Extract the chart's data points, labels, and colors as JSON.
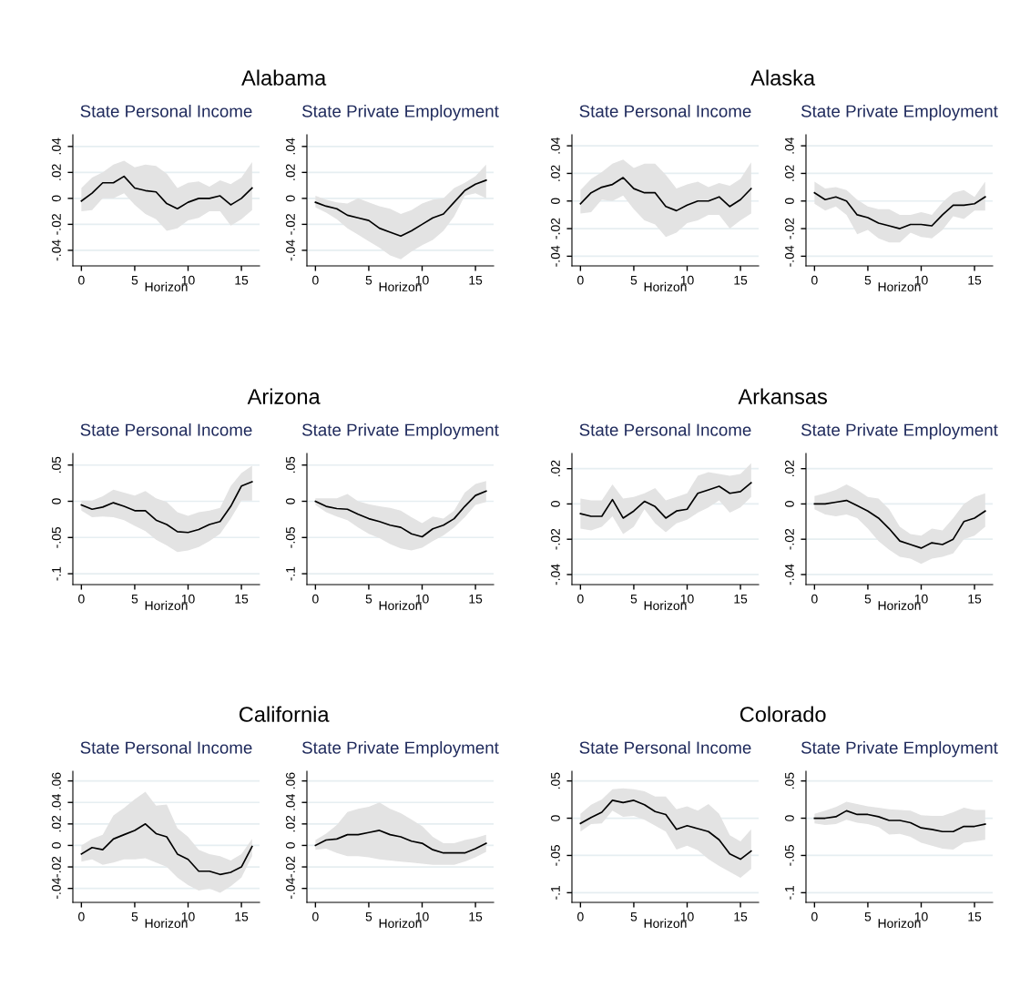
{
  "chart_data": [
    {
      "type": "line",
      "title": "State Personal Income",
      "annotations": [
        "Alabama"
      ],
      "xlabel": "Horizon",
      "x": [
        0,
        1,
        2,
        3,
        4,
        5,
        6,
        7,
        8,
        9,
        10,
        11,
        12,
        13,
        14,
        15,
        16
      ],
      "xlim": [
        -0.8,
        16.7
      ],
      "xticks": [
        0,
        5,
        10,
        15
      ],
      "ylim": [
        -0.052,
        0.049
      ],
      "yticks": [
        {
          "value": -0.04,
          "label": "-.04"
        },
        {
          "value": -0.02,
          "label": "-.02"
        },
        0,
        {
          "value": 0.02,
          "label": ".02"
        },
        {
          "value": 0.04,
          "label": ".04"
        }
      ],
      "grid": "y",
      "series": [
        {
          "color": "#000000",
          "values": [
            -0.002,
            0.004,
            0.012,
            0.012,
            0.017,
            0.008,
            0.006,
            0.005,
            -0.004,
            -0.008,
            -0.003,
            0,
            0,
            0.002,
            -0.005,
            0,
            0.008
          ],
          "upper": [
            0.008,
            0.016,
            0.02,
            0.026,
            0.029,
            0.024,
            0.026,
            0.025,
            0.019,
            0.008,
            0.012,
            0.013,
            0.009,
            0.014,
            0.011,
            0.016,
            0.028
          ],
          "lower": [
            -0.01,
            -0.009,
            0,
            0,
            0.004,
            -0.005,
            -0.012,
            -0.016,
            -0.025,
            -0.023,
            -0.017,
            -0.015,
            -0.01,
            -0.01,
            -0.021,
            -0.016,
            -0.009
          ]
        }
      ]
    },
    {
      "type": "line",
      "title": "State Private Employment",
      "xlabel": "Horizon",
      "x": [
        0,
        1,
        2,
        3,
        4,
        5,
        6,
        7,
        8,
        9,
        10,
        11,
        12,
        13,
        14,
        15,
        16
      ],
      "xlim": [
        -0.8,
        16.7
      ],
      "xticks": [
        0,
        5,
        10,
        15
      ],
      "ylim": [
        -0.052,
        0.049
      ],
      "yticks": [
        {
          "value": -0.04,
          "label": "-.04"
        },
        {
          "value": -0.02,
          "label": "-.02"
        },
        0,
        {
          "value": 0.02,
          "label": ".02"
        },
        {
          "value": 0.04,
          "label": ".04"
        }
      ],
      "grid": "y",
      "series": [
        {
          "color": "#000000",
          "values": [
            -0.003,
            -0.006,
            -0.008,
            -0.013,
            -0.015,
            -0.017,
            -0.023,
            -0.026,
            -0.029,
            -0.025,
            -0.02,
            -0.015,
            -0.012,
            -0.003,
            0.006,
            0.011,
            0.014
          ],
          "upper": [
            0.002,
            -0.001,
            -0.003,
            -0.004,
            0,
            -0.003,
            -0.006,
            -0.008,
            -0.012,
            -0.009,
            -0.004,
            -0.001,
            0,
            0.008,
            0.012,
            0.017,
            0.026
          ],
          "lower": [
            -0.007,
            -0.011,
            -0.016,
            -0.023,
            -0.028,
            -0.033,
            -0.038,
            -0.044,
            -0.047,
            -0.041,
            -0.036,
            -0.032,
            -0.025,
            -0.014,
            0.002,
            0.004,
            0
          ]
        }
      ]
    },
    {
      "type": "line",
      "title": "State Personal Income",
      "annotations": [
        "Alaska"
      ],
      "xlabel": "Horizon",
      "x": [
        0,
        1,
        2,
        3,
        4,
        5,
        6,
        7,
        8,
        9,
        10,
        11,
        12,
        13,
        14,
        15,
        16
      ],
      "xlim": [
        -0.8,
        16.7
      ],
      "xticks": [
        0,
        5,
        10,
        15
      ],
      "ylim": [
        -0.047,
        0.048
      ],
      "yticks": [
        {
          "value": -0.04,
          "label": "-.04"
        },
        {
          "value": -0.02,
          "label": "-.02"
        },
        0,
        {
          "value": 0.02,
          "label": ".02"
        },
        {
          "value": 0.04,
          "label": ".04"
        }
      ],
      "grid": "y",
      "series": [
        {
          "color": "#000000",
          "values": [
            -0.002,
            0.006,
            0.01,
            0.012,
            0.017,
            0.009,
            0.006,
            0.006,
            -0.004,
            -0.007,
            -0.003,
            0,
            0,
            0.003,
            -0.004,
            0.001,
            0.009
          ],
          "upper": [
            0.008,
            0.016,
            0.021,
            0.027,
            0.03,
            0.024,
            0.027,
            0.027,
            0.019,
            0.009,
            0.012,
            0.014,
            0.01,
            0.013,
            0.011,
            0.016,
            0.028
          ],
          "lower": [
            -0.009,
            -0.008,
            0.001,
            0,
            0.004,
            -0.006,
            -0.014,
            -0.017,
            -0.026,
            -0.023,
            -0.016,
            -0.014,
            -0.01,
            -0.01,
            -0.02,
            -0.014,
            -0.009
          ]
        }
      ]
    },
    {
      "type": "line",
      "title": "State Private Employment",
      "xlabel": "Horizon",
      "x": [
        0,
        1,
        2,
        3,
        4,
        5,
        6,
        7,
        8,
        9,
        10,
        11,
        12,
        13,
        14,
        15,
        16
      ],
      "xlim": [
        -0.8,
        16.7
      ],
      "xticks": [
        0,
        5,
        10,
        15
      ],
      "ylim": [
        -0.047,
        0.048
      ],
      "yticks": [
        {
          "value": -0.04,
          "label": "-.04"
        },
        {
          "value": -0.02,
          "label": "-.02"
        },
        0,
        {
          "value": 0.02,
          "label": ".02"
        },
        {
          "value": 0.04,
          "label": ".04"
        }
      ],
      "grid": "y",
      "series": [
        {
          "color": "#000000",
          "values": [
            0.006,
            0.001,
            0.003,
            0,
            -0.01,
            -0.012,
            -0.016,
            -0.018,
            -0.02,
            -0.017,
            -0.017,
            -0.018,
            -0.01,
            -0.003,
            -0.003,
            -0.002,
            0.003
          ],
          "upper": [
            0.014,
            0.009,
            0.01,
            0.008,
            0.001,
            -0.004,
            -0.006,
            -0.006,
            -0.01,
            -0.01,
            -0.008,
            -0.01,
            -0.001,
            0.006,
            0.008,
            0.003,
            0.014
          ],
          "lower": [
            -0.002,
            -0.007,
            -0.004,
            -0.01,
            -0.024,
            -0.021,
            -0.027,
            -0.03,
            -0.03,
            -0.023,
            -0.026,
            -0.027,
            -0.021,
            -0.011,
            -0.013,
            -0.007,
            -0.007
          ]
        }
      ]
    },
    {
      "type": "line",
      "title": "State Personal Income",
      "annotations": [
        "Arizona"
      ],
      "xlabel": "Horizon",
      "x": [
        0,
        1,
        2,
        3,
        4,
        5,
        6,
        7,
        8,
        9,
        10,
        11,
        12,
        13,
        14,
        15,
        16
      ],
      "xlim": [
        -0.8,
        16.7
      ],
      "xticks": [
        0,
        5,
        10,
        15
      ],
      "ylim": [
        -0.115,
        0.066
      ],
      "yticks": [
        {
          "value": -0.1,
          "label": "-.1"
        },
        {
          "value": -0.05,
          "label": "-.05"
        },
        0,
        {
          "value": 0.05,
          "label": ".05"
        }
      ],
      "grid": "y",
      "series": [
        {
          "color": "#000000",
          "values": [
            -0.005,
            -0.011,
            -0.008,
            -0.002,
            -0.007,
            -0.013,
            -0.013,
            -0.026,
            -0.032,
            -0.042,
            -0.043,
            -0.039,
            -0.032,
            -0.028,
            -0.007,
            0.021,
            0.027
          ],
          "upper": [
            0.001,
            0.001,
            0.007,
            0.016,
            0.012,
            0.008,
            0.014,
            0.004,
            -0.001,
            -0.015,
            -0.02,
            -0.015,
            -0.013,
            -0.009,
            0.021,
            0.039,
            0.049
          ],
          "lower": [
            -0.013,
            -0.022,
            -0.021,
            -0.022,
            -0.026,
            -0.034,
            -0.041,
            -0.053,
            -0.061,
            -0.07,
            -0.068,
            -0.063,
            -0.055,
            -0.045,
            -0.024,
            0.001,
            0.001
          ]
        }
      ]
    },
    {
      "type": "line",
      "title": "State Private Employment",
      "xlabel": "Horizon",
      "x": [
        0,
        1,
        2,
        3,
        4,
        5,
        6,
        7,
        8,
        9,
        10,
        11,
        12,
        13,
        14,
        15,
        16
      ],
      "xlim": [
        -0.8,
        16.7
      ],
      "xticks": [
        0,
        5,
        10,
        15
      ],
      "ylim": [
        -0.115,
        0.066
      ],
      "yticks": [
        {
          "value": -0.1,
          "label": "-.1"
        },
        {
          "value": -0.05,
          "label": "-.05"
        },
        0,
        {
          "value": 0.05,
          "label": ".05"
        }
      ],
      "grid": "y",
      "series": [
        {
          "color": "#000000",
          "values": [
            0,
            -0.007,
            -0.01,
            -0.011,
            -0.018,
            -0.024,
            -0.028,
            -0.033,
            -0.036,
            -0.045,
            -0.049,
            -0.038,
            -0.033,
            -0.024,
            -0.007,
            0.008,
            0.014
          ],
          "upper": [
            0.004,
            0.004,
            0.004,
            0.01,
            0,
            -0.004,
            -0.007,
            -0.009,
            -0.013,
            -0.022,
            -0.03,
            -0.021,
            -0.024,
            -0.013,
            0.012,
            0.024,
            0.028
          ],
          "lower": [
            -0.005,
            -0.015,
            -0.021,
            -0.026,
            -0.036,
            -0.045,
            -0.051,
            -0.059,
            -0.065,
            -0.068,
            -0.064,
            -0.055,
            -0.047,
            -0.036,
            -0.022,
            -0.005,
            -0.001
          ]
        }
      ]
    },
    {
      "type": "line",
      "title": "State Personal Income",
      "annotations": [
        "Arkansas"
      ],
      "xlabel": "Horizon",
      "x": [
        0,
        1,
        2,
        3,
        4,
        5,
        6,
        7,
        8,
        9,
        10,
        11,
        12,
        13,
        14,
        15,
        16
      ],
      "xlim": [
        -0.8,
        16.7
      ],
      "xticks": [
        0,
        5,
        10,
        15
      ],
      "ylim": [
        -0.0457,
        0.0286
      ],
      "yticks": [
        {
          "value": -0.04,
          "label": "-.04"
        },
        {
          "value": -0.02,
          "label": "-.02"
        },
        0,
        {
          "value": 0.02,
          "label": ".02"
        }
      ],
      "grid": "y",
      "series": [
        {
          "color": "#000000",
          "values": [
            -0.0055,
            -0.007,
            -0.007,
            0.0025,
            -0.008,
            -0.004,
            0.0015,
            -0.0015,
            -0.008,
            -0.004,
            -0.003,
            0.006,
            0.008,
            0.01,
            0.006,
            0.007,
            0.012
          ],
          "upper": [
            0.003,
            0.002,
            0.002,
            0.011,
            0.003,
            0.004,
            0.006,
            0.009,
            0.002,
            0.004,
            0.006,
            0.016,
            0.018,
            0.017,
            0.016,
            0.017,
            0.023
          ],
          "lower": [
            -0.014,
            -0.015,
            -0.013,
            -0.007,
            -0.017,
            -0.013,
            -0.003,
            -0.011,
            -0.016,
            -0.011,
            -0.009,
            -0.005,
            -0.002,
            0.002,
            -0.005,
            -0.002,
            0.004
          ]
        }
      ]
    },
    {
      "type": "line",
      "title": "State Private Employment",
      "xlabel": "Horizon",
      "x": [
        0,
        1,
        2,
        3,
        4,
        5,
        6,
        7,
        8,
        9,
        10,
        11,
        12,
        13,
        14,
        15,
        16
      ],
      "xlim": [
        -0.8,
        16.7
      ],
      "xticks": [
        0,
        5,
        10,
        15
      ],
      "ylim": [
        -0.0457,
        0.0286
      ],
      "yticks": [
        {
          "value": -0.04,
          "label": "-.04"
        },
        {
          "value": -0.02,
          "label": "-.02"
        },
        0,
        {
          "value": 0.02,
          "label": ".02"
        }
      ],
      "grid": "y",
      "series": [
        {
          "color": "#000000",
          "values": [
            0,
            0,
            0.001,
            0.002,
            -0.001,
            -0.004,
            -0.008,
            -0.014,
            -0.021,
            -0.023,
            -0.025,
            -0.022,
            -0.023,
            -0.02,
            -0.01,
            -0.008,
            -0.004
          ],
          "upper": [
            0.0045,
            0.006,
            0.008,
            0.011,
            0.008,
            0.004,
            0.003,
            -0.003,
            -0.013,
            -0.017,
            -0.018,
            -0.014,
            -0.015,
            -0.008,
            0,
            0.004,
            0.006
          ],
          "lower": [
            -0.003,
            -0.006,
            -0.007,
            -0.006,
            -0.008,
            -0.014,
            -0.021,
            -0.026,
            -0.03,
            -0.031,
            -0.034,
            -0.031,
            -0.03,
            -0.028,
            -0.02,
            -0.018,
            -0.013
          ]
        }
      ]
    },
    {
      "type": "line",
      "title": "State Personal Income",
      "annotations": [
        "California"
      ],
      "xlabel": "Horizon",
      "x": [
        0,
        1,
        2,
        3,
        4,
        5,
        6,
        7,
        8,
        9,
        10,
        11,
        12,
        13,
        14,
        15,
        16
      ],
      "xlim": [
        -0.8,
        16.7
      ],
      "xticks": [
        0,
        5,
        10,
        15
      ],
      "ylim": [
        -0.053,
        0.069
      ],
      "yticks": [
        {
          "value": -0.04,
          "label": "-.04"
        },
        {
          "value": -0.02,
          "label": "-.02"
        },
        0,
        {
          "value": 0.02,
          "label": ".02"
        },
        {
          "value": 0.04,
          "label": ".04"
        },
        {
          "value": 0.06,
          "label": ".06"
        }
      ],
      "grid": "y",
      "series": [
        {
          "color": "#000000",
          "values": [
            -0.008,
            -0.002,
            -0.004,
            0.006,
            0.01,
            0.014,
            0.02,
            0.011,
            0.008,
            -0.008,
            -0.013,
            -0.024,
            -0.024,
            -0.027,
            -0.025,
            -0.02,
            -0.001
          ],
          "upper": [
            0,
            0.006,
            0.01,
            0.028,
            0.035,
            0.043,
            0.05,
            0.037,
            0.038,
            0.016,
            0.008,
            -0.004,
            -0.008,
            -0.01,
            -0.014,
            -0.008,
            0.006
          ],
          "lower": [
            -0.015,
            -0.013,
            -0.018,
            -0.016,
            -0.013,
            -0.013,
            -0.012,
            -0.016,
            -0.02,
            -0.03,
            -0.037,
            -0.042,
            -0.04,
            -0.044,
            -0.038,
            -0.03,
            -0.01
          ]
        }
      ]
    },
    {
      "type": "line",
      "title": "State Private Employment",
      "xlabel": "Horizon",
      "x": [
        0,
        1,
        2,
        3,
        4,
        5,
        6,
        7,
        8,
        9,
        10,
        11,
        12,
        13,
        14,
        15,
        16
      ],
      "xlim": [
        -0.8,
        16.7
      ],
      "xticks": [
        0,
        5,
        10,
        15
      ],
      "ylim": [
        -0.053,
        0.069
      ],
      "yticks": [
        {
          "value": -0.04,
          "label": "-.04"
        },
        {
          "value": -0.02,
          "label": "-.02"
        },
        0,
        {
          "value": 0.02,
          "label": ".02"
        },
        {
          "value": 0.04,
          "label": ".04"
        },
        {
          "value": 0.06,
          "label": ".06"
        }
      ],
      "grid": "y",
      "series": [
        {
          "color": "#000000",
          "values": [
            0,
            0.005,
            0.006,
            0.01,
            0.01,
            0.012,
            0.014,
            0.01,
            0.008,
            0.004,
            0.002,
            -0.004,
            -0.007,
            -0.007,
            -0.007,
            -0.003,
            0.002
          ],
          "upper": [
            0.005,
            0.011,
            0.019,
            0.031,
            0.034,
            0.036,
            0.04,
            0.034,
            0.03,
            0.024,
            0.018,
            0.008,
            0.002,
            0.002,
            0.005,
            0.007,
            0.01
          ],
          "lower": [
            -0.004,
            -0.003,
            -0.007,
            -0.01,
            -0.01,
            -0.011,
            -0.013,
            -0.014,
            -0.015,
            -0.016,
            -0.017,
            -0.018,
            -0.018,
            -0.018,
            -0.015,
            -0.011,
            -0.006
          ]
        }
      ]
    },
    {
      "type": "line",
      "title": "State Personal Income",
      "annotations": [
        "Colorado"
      ],
      "xlabel": "Horizon",
      "x": [
        0,
        1,
        2,
        3,
        4,
        5,
        6,
        7,
        8,
        9,
        10,
        11,
        12,
        13,
        14,
        15,
        16
      ],
      "xlim": [
        -0.8,
        16.7
      ],
      "xticks": [
        0,
        5,
        10,
        15
      ],
      "ylim": [
        -0.113,
        0.063
      ],
      "yticks": [
        {
          "value": -0.1,
          "label": "-.1"
        },
        {
          "value": -0.05,
          "label": "-.05"
        },
        0,
        {
          "value": 0.05,
          "label": ".05"
        }
      ],
      "grid": "y",
      "series": [
        {
          "color": "#000000",
          "values": [
            -0.007,
            0.001,
            0.008,
            0.024,
            0.021,
            0.024,
            0.018,
            0.009,
            0.005,
            -0.015,
            -0.01,
            -0.014,
            -0.018,
            -0.029,
            -0.048,
            -0.055,
            -0.044
          ],
          "upper": [
            0.006,
            0.018,
            0.025,
            0.039,
            0.04,
            0.039,
            0.036,
            0.029,
            0.029,
            0.012,
            0.016,
            0.01,
            0.019,
            0.006,
            -0.023,
            -0.031,
            -0.015
          ],
          "lower": [
            -0.018,
            -0.008,
            -0.007,
            0.01,
            0.002,
            0.003,
            -0.002,
            -0.01,
            -0.018,
            -0.042,
            -0.037,
            -0.043,
            -0.055,
            -0.064,
            -0.072,
            -0.08,
            -0.068
          ]
        }
      ]
    },
    {
      "type": "line",
      "title": "State Private Employment",
      "xlabel": "Horizon",
      "x": [
        0,
        1,
        2,
        3,
        4,
        5,
        6,
        7,
        8,
        9,
        10,
        11,
        12,
        13,
        14,
        15,
        16
      ],
      "xlim": [
        -0.8,
        16.7
      ],
      "xticks": [
        0,
        5,
        10,
        15
      ],
      "ylim": [
        -0.113,
        0.063
      ],
      "yticks": [
        {
          "value": -0.1,
          "label": "-.1"
        },
        {
          "value": -0.05,
          "label": "-.05"
        },
        0,
        {
          "value": 0.05,
          "label": ".05"
        }
      ],
      "grid": "y",
      "series": [
        {
          "color": "#000000",
          "values": [
            0,
            0,
            0.002,
            0.01,
            0.005,
            0.005,
            0.002,
            -0.003,
            -0.003,
            -0.006,
            -0.013,
            -0.015,
            -0.018,
            -0.018,
            -0.011,
            -0.011,
            -0.008
          ],
          "upper": [
            0.006,
            0.01,
            0.015,
            0.022,
            0.019,
            0.016,
            0.014,
            0.012,
            0.011,
            0.01,
            0.004,
            0.003,
            0.003,
            0.008,
            0.014,
            0.011,
            0.011
          ],
          "lower": [
            -0.007,
            -0.009,
            -0.008,
            -0.002,
            -0.006,
            -0.008,
            -0.012,
            -0.022,
            -0.021,
            -0.025,
            -0.033,
            -0.037,
            -0.041,
            -0.042,
            -0.033,
            -0.031,
            -0.029
          ]
        }
      ]
    }
  ]
}
